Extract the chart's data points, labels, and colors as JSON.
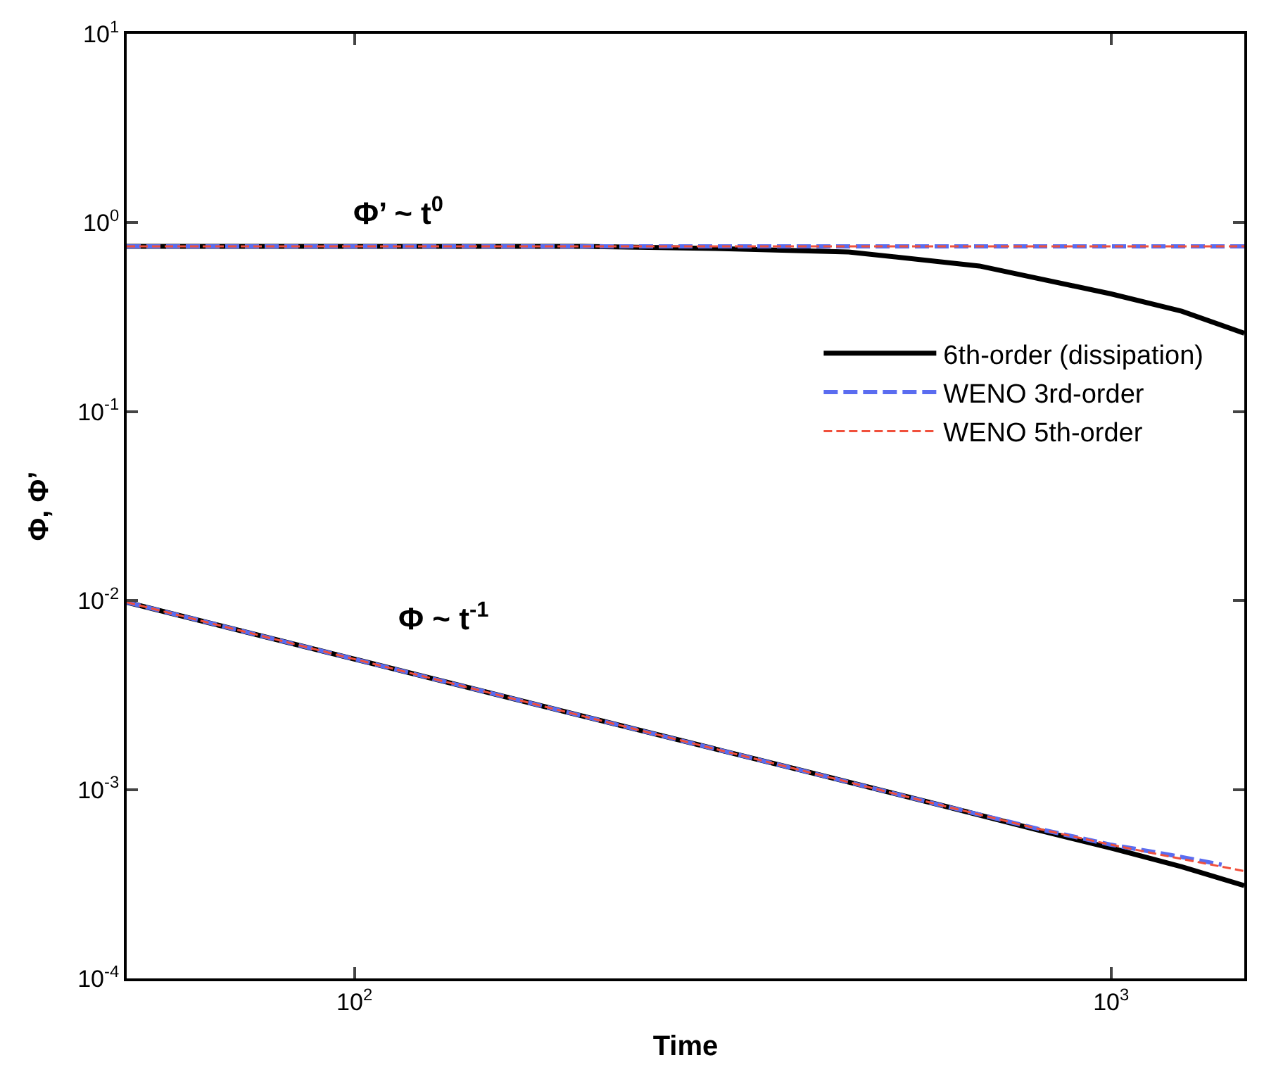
{
  "chart_data": {
    "type": "line",
    "xlabel": "Time",
    "ylabel": "Φ, Φ’",
    "log": "xy",
    "legend": "right",
    "marker": "none",
    "xlim": [
      50,
      1500
    ],
    "xticks": [
      {
        "value": 100,
        "label": "10$^{2}$"
      },
      {
        "value": 1000,
        "label": "10$^{3}$"
      }
    ],
    "ylim": [
      0.0001,
      10
    ],
    "yticks": [
      {
        "value": 0.0001,
        "label": "10$^{-4}$"
      },
      {
        "value": 0.001,
        "label": "10$^{-3}$"
      },
      {
        "value": 0.01,
        "label": "10$^{-2}$"
      },
      {
        "value": 0.1,
        "label": "10$^{-1}$"
      },
      {
        "value": 1,
        "label": "10$^{0}$"
      },
      {
        "value": 10,
        "label": "10$^{1}$"
      }
    ],
    "annotations": [
      "Φ’ ~ t$^{0}$",
      "Φ ~ t$^{-1}$"
    ],
    "series": [
      {
        "name": "6th-order (dissipation)",
        "color": "#000000",
        "line_style": "solid",
        "x": [
          50,
          100,
          200,
          300,
          450,
          670,
          1000,
          1240,
          1500
        ],
        "values": [
          0.75,
          0.75,
          0.75,
          0.73,
          0.7,
          0.59,
          0.42,
          0.34,
          0.26
        ]
      },
      {
        "name": null,
        "color": "#000000",
        "line_style": "solid",
        "x": [
          50,
          100,
          200,
          400,
          600,
          800,
          1000,
          1240,
          1500
        ],
        "values": [
          0.0098,
          0.0049,
          0.00245,
          0.00123,
          0.00082,
          0.00061,
          0.00049,
          0.00039,
          0.00031
        ]
      },
      {
        "name": "WENO 3rd-order",
        "color": "#5a6cf0",
        "line_style": "dashed",
        "x": [
          50,
          100,
          200,
          400,
          800,
          1500
        ],
        "values": [
          0.75,
          0.75,
          0.75,
          0.75,
          0.75,
          0.75
        ]
      },
      {
        "name": null,
        "color": "#5a6cf0",
        "line_style": "dashed",
        "x": [
          50,
          100,
          200,
          400,
          600,
          800,
          1000,
          1200,
          1400
        ],
        "values": [
          0.0098,
          0.0049,
          0.00245,
          0.00123,
          0.00082,
          0.00062,
          0.00051,
          0.00045,
          0.0004
        ]
      },
      {
        "name": "WENO 5th-order",
        "color": "#f0503c",
        "line_style": "dotted",
        "x": [
          50,
          100,
          200,
          400,
          800,
          1500
        ],
        "values": [
          0.75,
          0.75,
          0.75,
          0.75,
          0.75,
          0.75
        ]
      },
      {
        "name": null,
        "color": "#f0503c",
        "line_style": "dotted",
        "x": [
          50,
          100,
          200,
          400,
          600,
          800,
          1000,
          1200,
          1500
        ],
        "values": [
          0.0098,
          0.0049,
          0.00245,
          0.00123,
          0.00082,
          0.00062,
          0.00051,
          0.00044,
          0.00037
        ]
      }
    ]
  }
}
